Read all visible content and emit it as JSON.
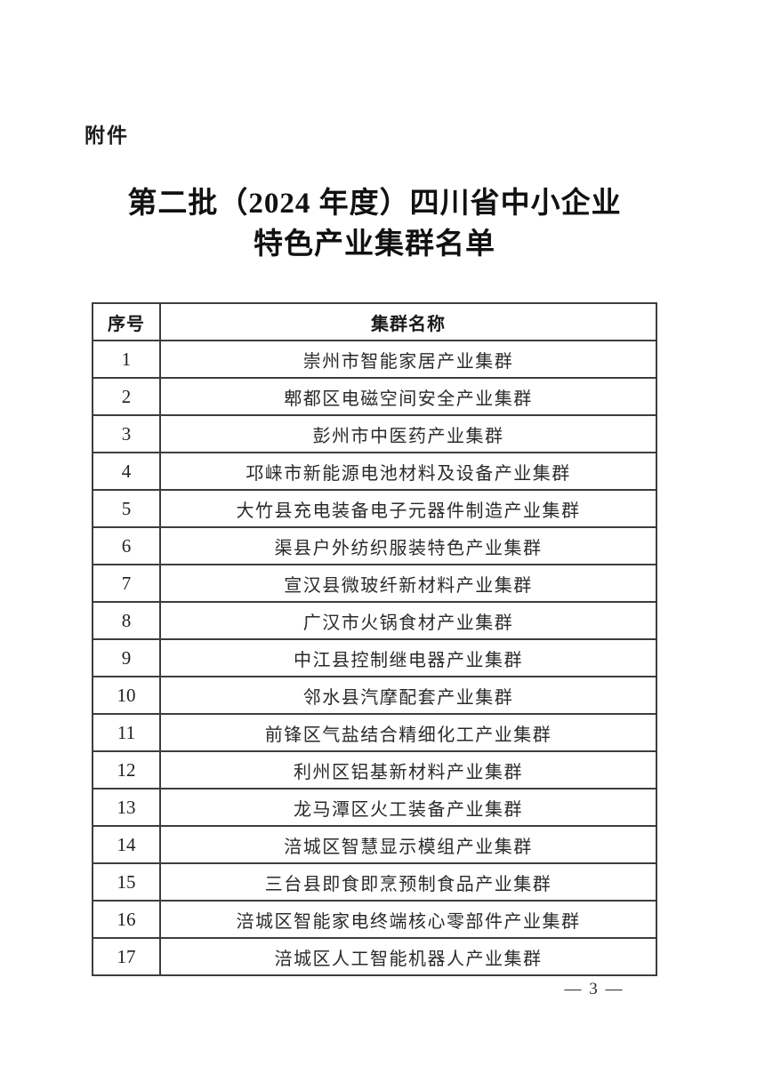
{
  "document": {
    "attachment_label": "附件",
    "title_line1": "第二批（2024 年度）四川省中小企业",
    "title_line2": "特色产业集群名单",
    "page_number": "— 3 —",
    "table": {
      "headers": [
        "序号",
        "集群名称"
      ],
      "rows": [
        {
          "no": "1",
          "name": "崇州市智能家居产业集群"
        },
        {
          "no": "2",
          "name": "郫都区电磁空间安全产业集群"
        },
        {
          "no": "3",
          "name": "彭州市中医药产业集群"
        },
        {
          "no": "4",
          "name": "邛崃市新能源电池材料及设备产业集群"
        },
        {
          "no": "5",
          "name": "大竹县充电装备电子元器件制造产业集群"
        },
        {
          "no": "6",
          "name": "渠县户外纺织服装特色产业集群"
        },
        {
          "no": "7",
          "name": "宣汉县微玻纤新材料产业集群"
        },
        {
          "no": "8",
          "name": "广汉市火锅食材产业集群"
        },
        {
          "no": "9",
          "name": "中江县控制继电器产业集群"
        },
        {
          "no": "10",
          "name": "邻水县汽摩配套产业集群"
        },
        {
          "no": "11",
          "name": "前锋区气盐结合精细化工产业集群"
        },
        {
          "no": "12",
          "name": "利州区铝基新材料产业集群"
        },
        {
          "no": "13",
          "name": "龙马潭区火工装备产业集群"
        },
        {
          "no": "14",
          "name": "涪城区智慧显示模组产业集群"
        },
        {
          "no": "15",
          "name": "三台县即食即烹预制食品产业集群"
        },
        {
          "no": "16",
          "name": "涪城区智能家电终端核心零部件产业集群"
        },
        {
          "no": "17",
          "name": "涪城区人工智能机器人产业集群"
        }
      ]
    }
  }
}
